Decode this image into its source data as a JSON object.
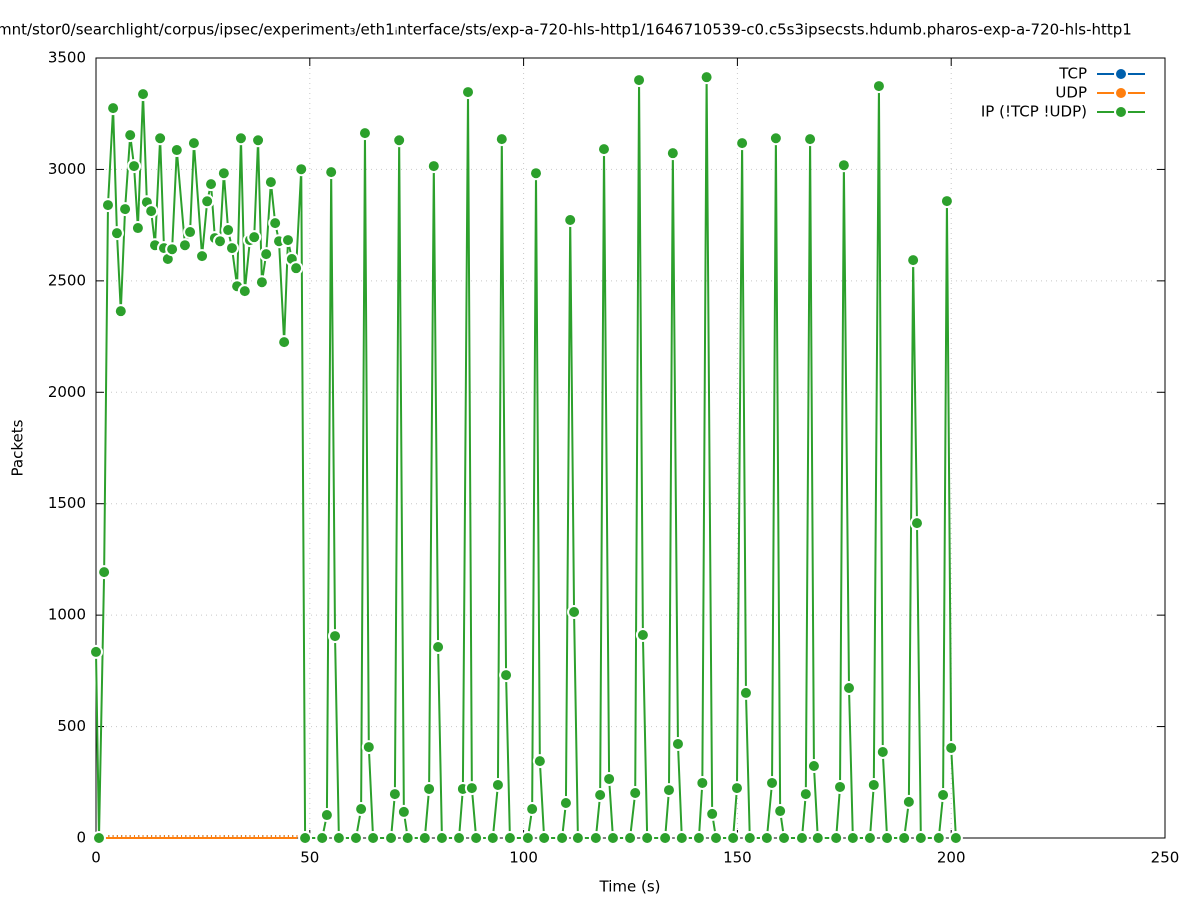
{
  "chart_data": {
    "type": "line",
    "title": "mnt/stor0/searchlight/corpus/ipsec/experiment₃/eth1ᵢnterface/sts/exp-a-720-hls-http1/1646710539-c0.c5s3ipsecsts.hdumb.pharos-exp-a-720-hls-http1",
    "xlabel": "Time (s)",
    "ylabel": "Packets",
    "xlim": [
      0,
      250
    ],
    "xticks": [
      0,
      50,
      100,
      150,
      200,
      250
    ],
    "ylim": [
      0,
      3500
    ],
    "yticks": [
      0,
      500,
      1000,
      1500,
      2000,
      2500,
      3000,
      3500
    ],
    "grid": true,
    "legend": "top-right",
    "series": [
      {
        "name": "TCP",
        "color": "#0060ad",
        "x": [
          0,
          1,
          2,
          3,
          4,
          5,
          6,
          7,
          8,
          9,
          10,
          11,
          12,
          13,
          14,
          15,
          16,
          17,
          18,
          19,
          20,
          21,
          22,
          23,
          24,
          25,
          26,
          27,
          28,
          29,
          30,
          31,
          32,
          33,
          34,
          35,
          36,
          37,
          38,
          39,
          40,
          41,
          42,
          43,
          44,
          45,
          46,
          47
        ],
        "values": [
          0,
          0,
          0,
          0,
          0,
          0,
          0,
          0,
          0,
          0,
          0,
          0,
          0,
          0,
          0,
          0,
          0,
          0,
          0,
          0,
          0,
          0,
          0,
          0,
          0,
          0,
          0,
          0,
          0,
          0,
          0,
          0,
          0,
          0,
          0,
          0,
          0,
          0,
          0,
          0,
          0,
          0,
          0,
          0,
          0,
          0,
          0,
          0
        ]
      },
      {
        "name": "UDP",
        "color": "#ff7f0e",
        "x": [
          0,
          1,
          2,
          3,
          4,
          5,
          6,
          7,
          8,
          9,
          10,
          11,
          12,
          13,
          14,
          15,
          16,
          17,
          18,
          19,
          20,
          21,
          22,
          23,
          24,
          25,
          26,
          27,
          28,
          29,
          30,
          31,
          32,
          33,
          34,
          35,
          36,
          37,
          38,
          39,
          40,
          41,
          42,
          43,
          44,
          45,
          46,
          47
        ],
        "values": [
          0,
          0,
          0,
          0,
          0,
          0,
          0,
          0,
          0,
          0,
          0,
          0,
          0,
          0,
          0,
          0,
          0,
          0,
          0,
          0,
          0,
          0,
          0,
          0,
          0,
          0,
          0,
          0,
          0,
          0,
          0,
          0,
          0,
          0,
          0,
          0,
          0,
          0,
          0,
          0,
          0,
          0,
          0,
          0,
          0,
          0,
          0,
          0
        ]
      },
      {
        "name": "IP (!TCP  !UDP)",
        "color": "#2ca02c",
        "x": [
          0,
          0.7,
          1.9,
          2.8,
          4.0,
          4.9,
          5.8,
          6.8,
          8.0,
          8.9,
          9.8,
          11.0,
          11.9,
          12.9,
          13.8,
          15.0,
          15.9,
          16.8,
          17.8,
          18.9,
          20.8,
          22.0,
          22.9,
          24.8,
          26.0,
          26.9,
          27.8,
          29.0,
          29.9,
          30.9,
          31.8,
          33.0,
          33.9,
          34.8,
          36.0,
          37.0,
          37.9,
          38.8,
          39.8,
          40.9,
          41.9,
          42.8,
          44.0,
          44.9,
          45.8,
          46.8,
          48.0,
          48.9,
          52.9,
          54.0,
          55.0,
          55.9,
          56.8,
          60.8,
          62.0,
          62.9,
          63.8,
          64.8,
          69.0,
          69.9,
          70.9,
          72.0,
          72.9,
          76.9,
          77.9,
          79.0,
          80.0,
          80.9,
          84.9,
          85.8,
          87.0,
          87.9,
          88.9,
          92.8,
          94.0,
          94.9,
          95.9,
          96.8,
          101.0,
          102.0,
          102.9,
          103.8,
          104.8,
          109.0,
          109.9,
          110.9,
          111.8,
          112.7,
          116.9,
          117.9,
          118.8,
          120.0,
          120.9,
          124.9,
          126.1,
          127.0,
          127.9,
          128.9,
          133.1,
          134.0,
          134.9,
          136.1,
          137.0,
          141.0,
          141.8,
          142.8,
          144.1,
          145.0,
          149.0,
          149.9,
          151.1,
          152.0,
          152.9,
          156.9,
          158.1,
          159.0,
          160.0,
          160.9,
          165.1,
          166.0,
          167.0,
          167.9,
          168.8,
          173.1,
          174.0,
          174.9,
          176.1,
          177.0,
          181.0,
          181.9,
          183.1,
          184.0,
          185.0,
          189.0,
          190.1,
          191.1,
          192.0,
          192.9,
          197.1,
          198.1,
          199.0,
          200.0,
          201.1
        ],
        "values": [
          835,
          0,
          1193,
          2840,
          3275,
          2714,
          2364,
          2822,
          3154,
          3015,
          2737,
          3338,
          2853,
          2813,
          2660,
          3140,
          2647,
          2598,
          2642,
          3087,
          2660,
          2719,
          3118,
          2611,
          2857,
          2934,
          2692,
          2678,
          2983,
          2728,
          2647,
          2476,
          3140,
          2454,
          2683,
          2696,
          3131,
          2494,
          2620,
          2943,
          2759,
          2678,
          2225,
          2683,
          2598,
          2557,
          3001,
          0,
          0,
          103,
          2988,
          906,
          0,
          0,
          130,
          3163,
          408,
          0,
          0,
          197,
          3131,
          117,
          0,
          0,
          220,
          3015,
          857,
          0,
          0,
          220,
          3347,
          224,
          0,
          0,
          238,
          3136,
          731,
          0,
          0,
          130,
          2983,
          345,
          0,
          0,
          157,
          2773,
          1014,
          0,
          0,
          193,
          3091,
          265,
          0,
          0,
          202,
          3401,
          911,
          0,
          0,
          215,
          3073,
          422,
          0,
          0,
          247,
          3414,
          108,
          0,
          0,
          224,
          3118,
          651,
          0,
          0,
          247,
          3140,
          121,
          0,
          0,
          197,
          3136,
          323,
          0,
          0,
          229,
          3019,
          673,
          0,
          0,
          238,
          3374,
          386,
          0,
          0,
          162,
          2593,
          1413,
          0,
          0,
          193,
          2858,
          404,
          0
        ]
      }
    ]
  }
}
